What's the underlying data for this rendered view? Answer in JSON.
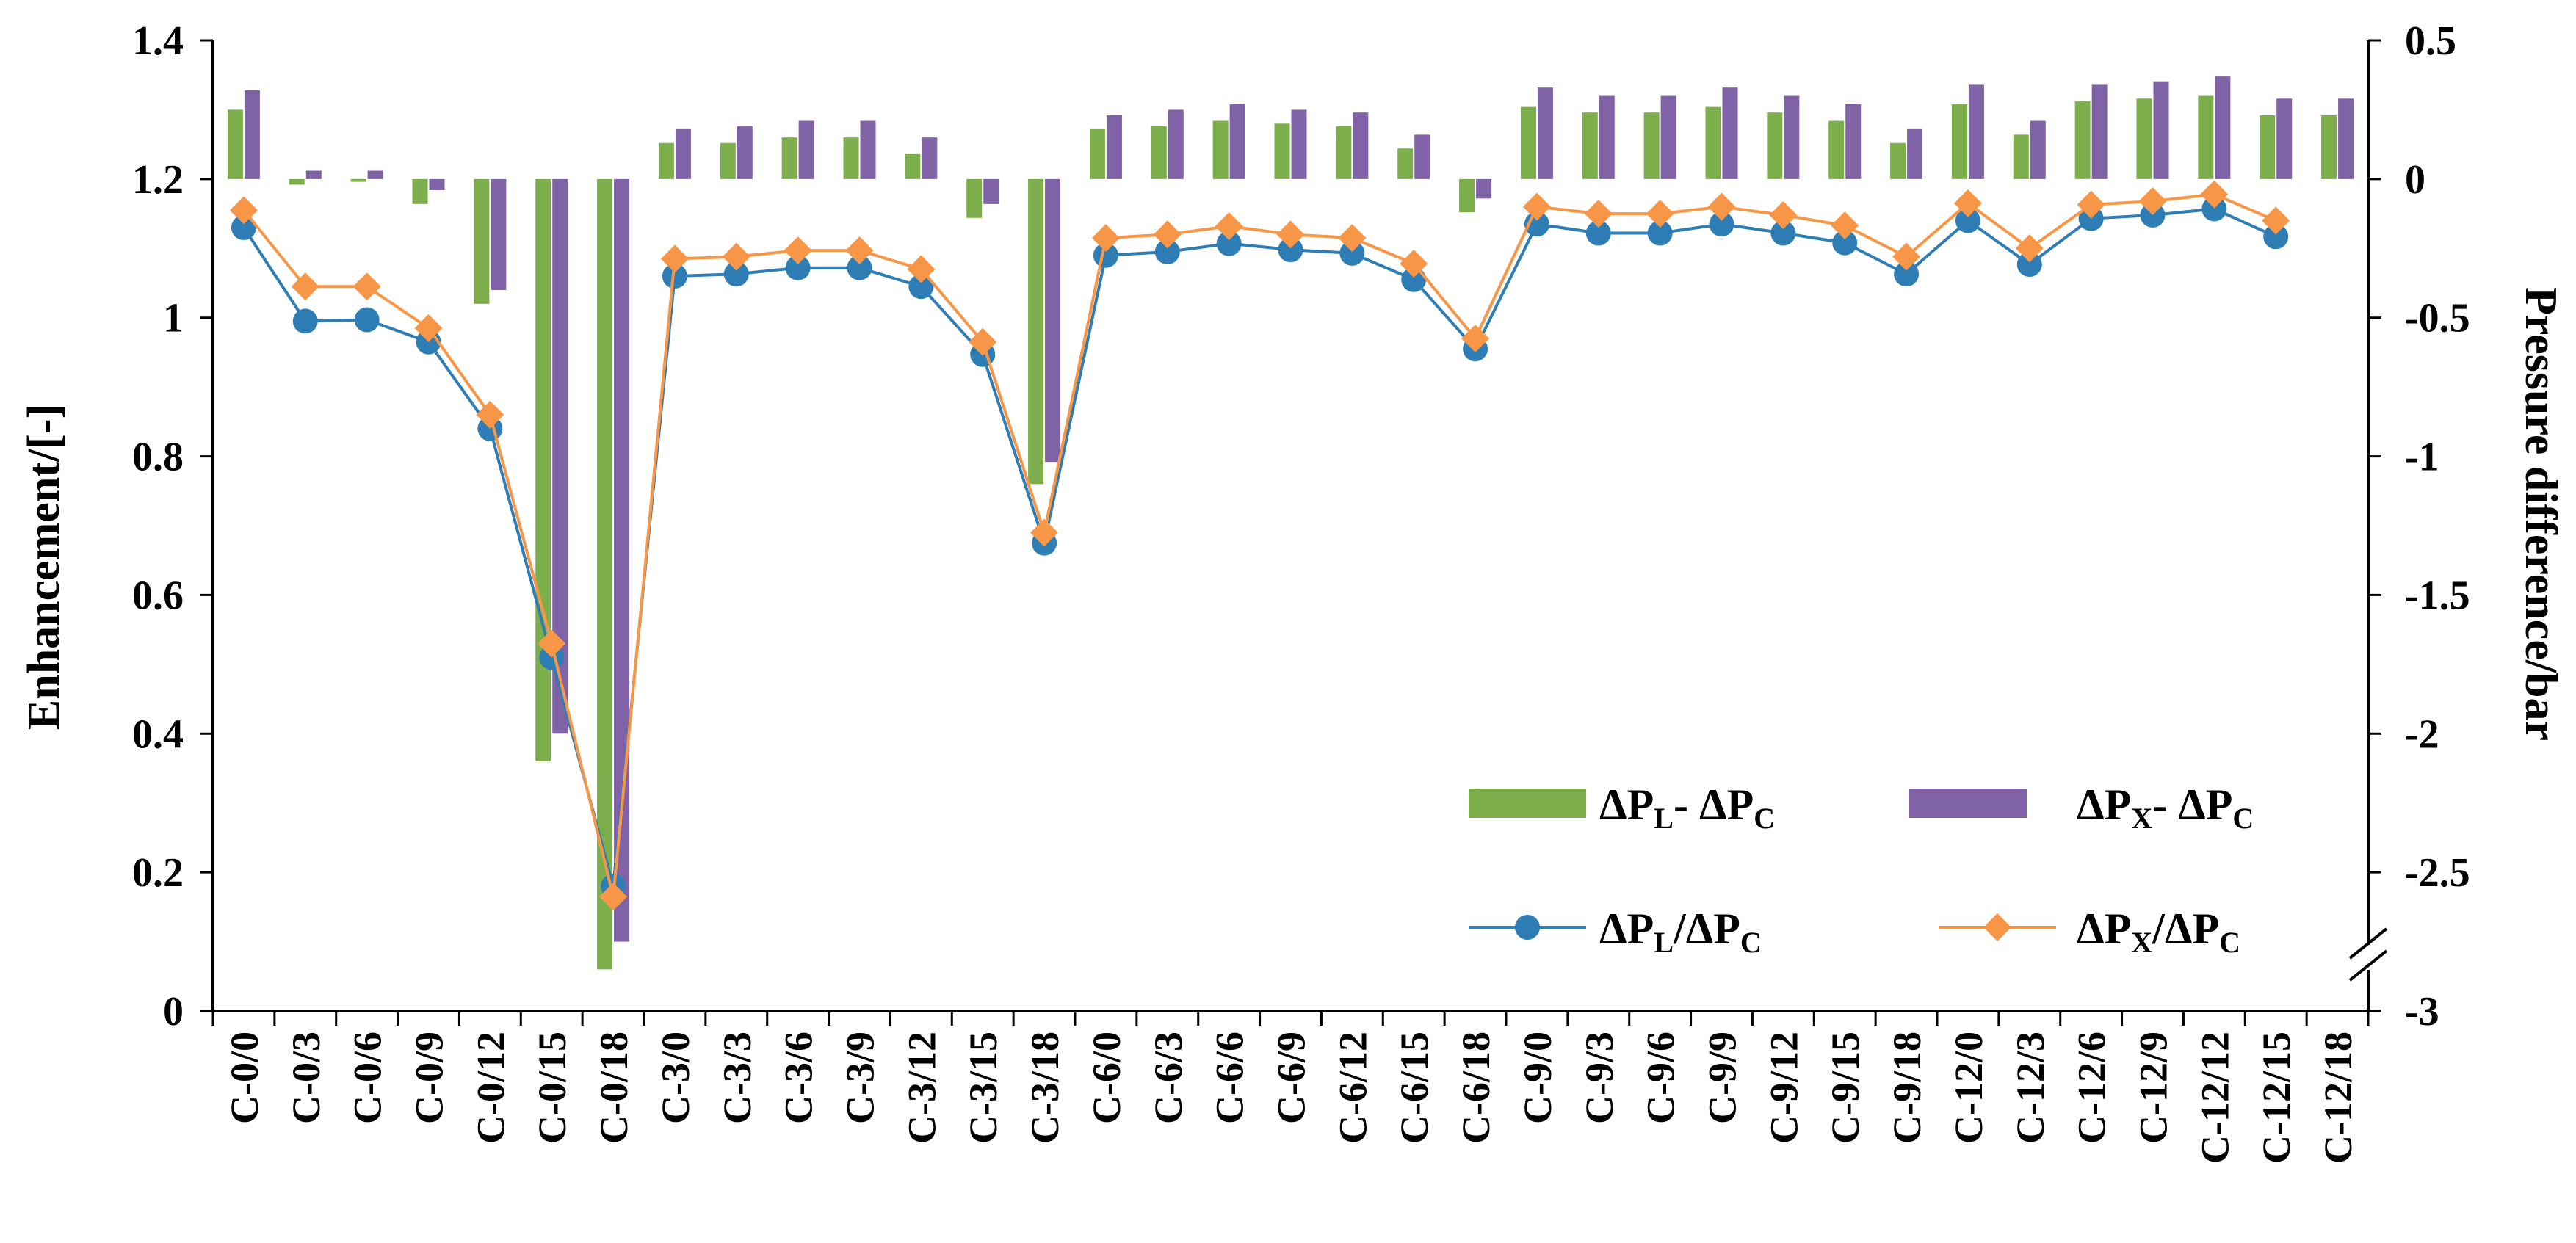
{
  "chart_data": {
    "type": "bar+line",
    "categories": [
      "C-0/0",
      "C-0/3",
      "C-0/6",
      "C-0/9",
      "C-0/12",
      "C-0/15",
      "C-0/18",
      "C-3/0",
      "C-3/3",
      "C-3/6",
      "C-3/9",
      "C-3/12",
      "C-3/15",
      "C-3/18",
      "C-6/0",
      "C-6/3",
      "C-6/6",
      "C-6/9",
      "C-6/12",
      "C-6/15",
      "C-6/18",
      "C-9/0",
      "C-9/3",
      "C-9/6",
      "C-9/9",
      "C-9/12",
      "C-9/15",
      "C-9/18",
      "C-12/0",
      "C-12/3",
      "C-12/6",
      "C-12/9",
      "C-12/12",
      "C-12/15",
      "C-12/18"
    ],
    "left_axis": {
      "label": "Enhancement/[-]",
      "ylim": [
        0,
        1.4
      ],
      "ticks": [
        0,
        0.2,
        0.4,
        0.6,
        0.8,
        1.0,
        1.2,
        1.4
      ],
      "tick_labels": [
        "0",
        "0.2",
        "0.4",
        "0.6",
        "0.8",
        "1",
        "1.2",
        "1.4"
      ]
    },
    "right_axis": {
      "label": "Pressure difference/bar",
      "ylim": [
        -3,
        0.5
      ],
      "broken": true,
      "ticks": [
        -3,
        -2.5,
        -2,
        -1.5,
        -1,
        -0.5,
        0,
        0.5
      ],
      "tick_labels": [
        "-3",
        "-2.5",
        "-2",
        "-1.5",
        "-1",
        "-0.5",
        "0",
        "0.5"
      ]
    },
    "series": [
      {
        "name": "ΔPL - ΔPC",
        "label_main": [
          "ΔP",
          "- ΔP"
        ],
        "label_sub": [
          "L",
          "C"
        ],
        "type": "bar",
        "axis": "right",
        "color": "#7CAF4B",
        "values": [
          0.25,
          -0.02,
          -0.01,
          -0.09,
          -0.45,
          -2.1,
          -2.85,
          0.13,
          0.13,
          0.15,
          0.15,
          0.09,
          -0.14,
          -1.1,
          0.18,
          0.19,
          0.21,
          0.2,
          0.19,
          0.11,
          -0.12,
          0.26,
          0.24,
          0.24,
          0.26,
          0.24,
          0.21,
          0.13,
          0.27,
          0.16,
          0.28,
          0.29,
          0.3,
          0.23,
          0.23
        ]
      },
      {
        "name": "ΔPX - ΔPC",
        "label_main": [
          "ΔP",
          "- ΔP"
        ],
        "label_sub": [
          "X",
          "C"
        ],
        "type": "bar",
        "axis": "right",
        "color": "#8062A7",
        "values": [
          0.32,
          0.03,
          0.03,
          -0.04,
          -0.4,
          -2.0,
          -2.75,
          0.18,
          0.19,
          0.21,
          0.21,
          0.15,
          -0.09,
          -1.02,
          0.23,
          0.25,
          0.27,
          0.25,
          0.24,
          0.16,
          -0.07,
          0.33,
          0.3,
          0.3,
          0.33,
          0.3,
          0.27,
          0.18,
          0.34,
          0.21,
          0.34,
          0.35,
          0.37,
          0.29,
          0.29
        ]
      },
      {
        "name": "ΔPL/ΔPC",
        "label_main": [
          "ΔP",
          "/ΔP"
        ],
        "label_sub": [
          "L",
          "C"
        ],
        "type": "line",
        "marker": "circle",
        "axis": "left",
        "color": "#2E7DB5",
        "values": [
          1.13,
          0.995,
          0.997,
          0.965,
          0.84,
          0.51,
          0.18,
          1.06,
          1.063,
          1.072,
          1.072,
          1.045,
          0.947,
          0.675,
          1.09,
          1.095,
          1.107,
          1.098,
          1.093,
          1.055,
          0.955,
          1.135,
          1.122,
          1.122,
          1.135,
          1.122,
          1.108,
          1.063,
          1.14,
          1.077,
          1.143,
          1.148,
          1.157,
          1.117,
          null
        ]
      },
      {
        "name": "ΔPX/ΔPC",
        "label_main": [
          "ΔP",
          "/ΔP"
        ],
        "label_sub": [
          "X",
          "C"
        ],
        "type": "line",
        "marker": "diamond",
        "axis": "left",
        "color": "#F79646",
        "values": [
          1.155,
          1.045,
          1.045,
          0.985,
          0.86,
          0.53,
          0.165,
          1.085,
          1.088,
          1.097,
          1.097,
          1.07,
          0.965,
          0.69,
          1.115,
          1.12,
          1.132,
          1.12,
          1.115,
          1.078,
          0.97,
          1.16,
          1.15,
          1.15,
          1.16,
          1.148,
          1.133,
          1.088,
          1.165,
          1.1,
          1.163,
          1.168,
          1.178,
          1.14,
          null
        ]
      }
    ],
    "legend_position": "lower-right inside plot"
  }
}
